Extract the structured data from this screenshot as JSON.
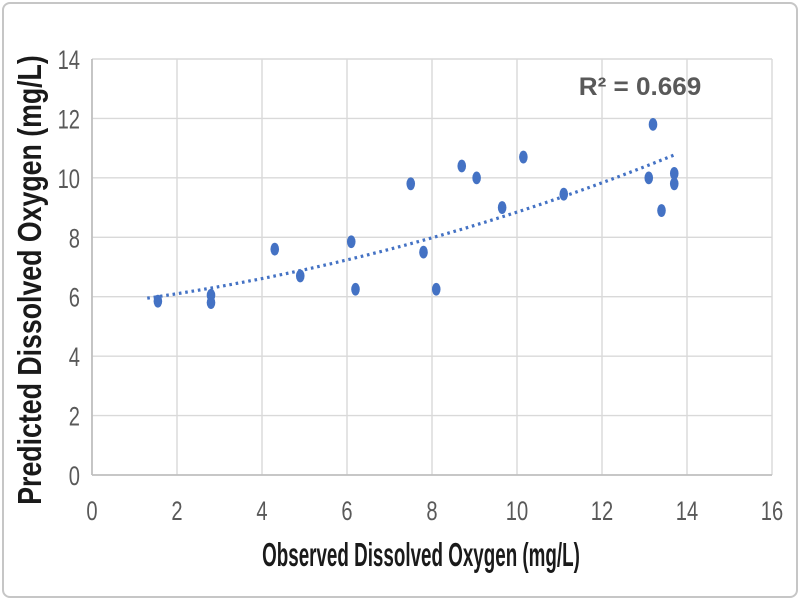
{
  "figure": {
    "r_squared_label": "R² = 0.669"
  },
  "chart_data": {
    "type": "scatter",
    "title": "",
    "xlabel": "Observed Dissolved Oxygen (mg/L)",
    "ylabel": "Predicted Dissolved Oxygen (mg/L)",
    "xlim": [
      0,
      16
    ],
    "ylim": [
      0,
      14
    ],
    "xticks": [
      0,
      2,
      4,
      6,
      8,
      10,
      12,
      14,
      16
    ],
    "yticks": [
      0,
      2,
      4,
      6,
      8,
      10,
      12,
      14
    ],
    "grid": true,
    "legend": "none",
    "annotation": {
      "text": "R² = 0.669",
      "x": 12.9,
      "y": 12.9
    },
    "series": [
      {
        "name": "Predicted vs Observed Dissolved Oxygen",
        "marker": "circle",
        "points": [
          [
            1.55,
            5.85
          ],
          [
            2.8,
            6.05
          ],
          [
            2.8,
            5.8
          ],
          [
            4.3,
            7.6
          ],
          [
            4.9,
            6.7
          ],
          [
            6.1,
            7.85
          ],
          [
            6.2,
            6.25
          ],
          [
            7.5,
            9.8
          ],
          [
            7.8,
            7.5
          ],
          [
            8.1,
            6.25
          ],
          [
            8.7,
            10.4
          ],
          [
            9.05,
            10.0
          ],
          [
            9.65,
            9.0
          ],
          [
            10.15,
            10.7
          ],
          [
            11.1,
            9.45
          ],
          [
            13.1,
            10.0
          ],
          [
            13.2,
            11.8
          ],
          [
            13.4,
            8.9
          ],
          [
            13.7,
            10.15
          ],
          [
            13.7,
            9.8
          ]
        ]
      }
    ],
    "trendline": {
      "style": "dotted",
      "r_squared": 0.669,
      "start": [
        1.3,
        5.95
      ],
      "control": [
        7.6,
        7.25
      ],
      "end": [
        13.7,
        10.77
      ]
    },
    "colors": {
      "marker": "#4472C4",
      "trendline": "#4472C4",
      "gridline": "#D9D9D9",
      "axis_line": "#BFBFBF",
      "tick_label": "#595959",
      "title_text": "#1A1A1A",
      "annotation_text": "#595959",
      "frame_border": "#C6C6C6",
      "background": "#FFFFFF"
    }
  }
}
